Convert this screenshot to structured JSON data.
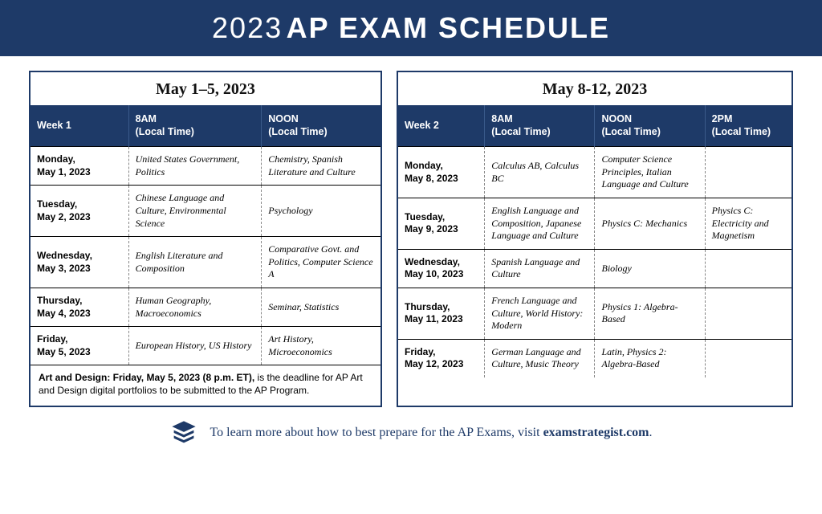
{
  "colors": {
    "primary": "#1e3a68",
    "bg": "#ffffff",
    "text": "#111111"
  },
  "header": {
    "year": "2023",
    "title": "AP EXAM SCHEDULE"
  },
  "week1": {
    "range": "May 1–5, 2023",
    "columns": [
      "Week 1",
      "8AM\n(Local Time)",
      "NOON\n(Local Time)"
    ],
    "rows": [
      {
        "date": "Monday,\nMay 1, 2023",
        "c8": "United States Government, Politics",
        "cn": "Chemistry, Spanish Literature and Culture"
      },
      {
        "date": "Tuesday,\nMay 2, 2023",
        "c8": "Chinese Language and Culture, Environmental Science",
        "cn": "Psychology"
      },
      {
        "date": "Wednesday,\nMay 3, 2023",
        "c8": "English Literature and Composition",
        "cn": "Comparative Govt. and Politics, Computer Science A"
      },
      {
        "date": "Thursday,\nMay 4, 2023",
        "c8": "Human Geography, Macroeconomics",
        "cn": "Seminar, Statistics"
      },
      {
        "date": "Friday,\nMay 5, 2023",
        "c8": "European History, US History",
        "cn": "Art History, Microeconomics"
      }
    ],
    "footnote_bold": "Art and Design: Friday, May 5, 2023 (8 p.m. ET),",
    "footnote_rest": " is the deadline for AP Art and Design digital portfolios to be submitted to the AP Program."
  },
  "week2": {
    "range": "May 8-12, 2023",
    "columns": [
      "Week 2",
      "8AM\n(Local Time)",
      "NOON\n(Local Time)",
      "2PM\n(Local Time)"
    ],
    "rows": [
      {
        "date": "Monday,\nMay 8, 2023",
        "c8": "Calculus AB, Calculus BC",
        "cn": "Computer Science Principles, Italian Language and Culture",
        "c2": ""
      },
      {
        "date": "Tuesday,\nMay 9, 2023",
        "c8": "English Language and Composition, Japanese Language and Culture",
        "cn": "Physics C: Mechanics",
        "c2": "Physics C: Electricity and Magnetism"
      },
      {
        "date": "Wednesday,\nMay 10, 2023",
        "c8": "Spanish Language and Culture",
        "cn": "Biology",
        "c2": ""
      },
      {
        "date": "Thursday,\nMay 11, 2023",
        "c8": "French Language and Culture, World History: Modern",
        "cn": "Physics 1: Algebra-Based",
        "c2": ""
      },
      {
        "date": "Friday,\nMay 12, 2023",
        "c8": "German Language and Culture, Music Theory",
        "cn": "Latin, Physics 2: Algebra-Based",
        "c2": ""
      }
    ]
  },
  "footer": {
    "text": "To learn more about how to best prepare for the AP Exams, visit ",
    "site": "examstrategist.com",
    "period": "."
  }
}
